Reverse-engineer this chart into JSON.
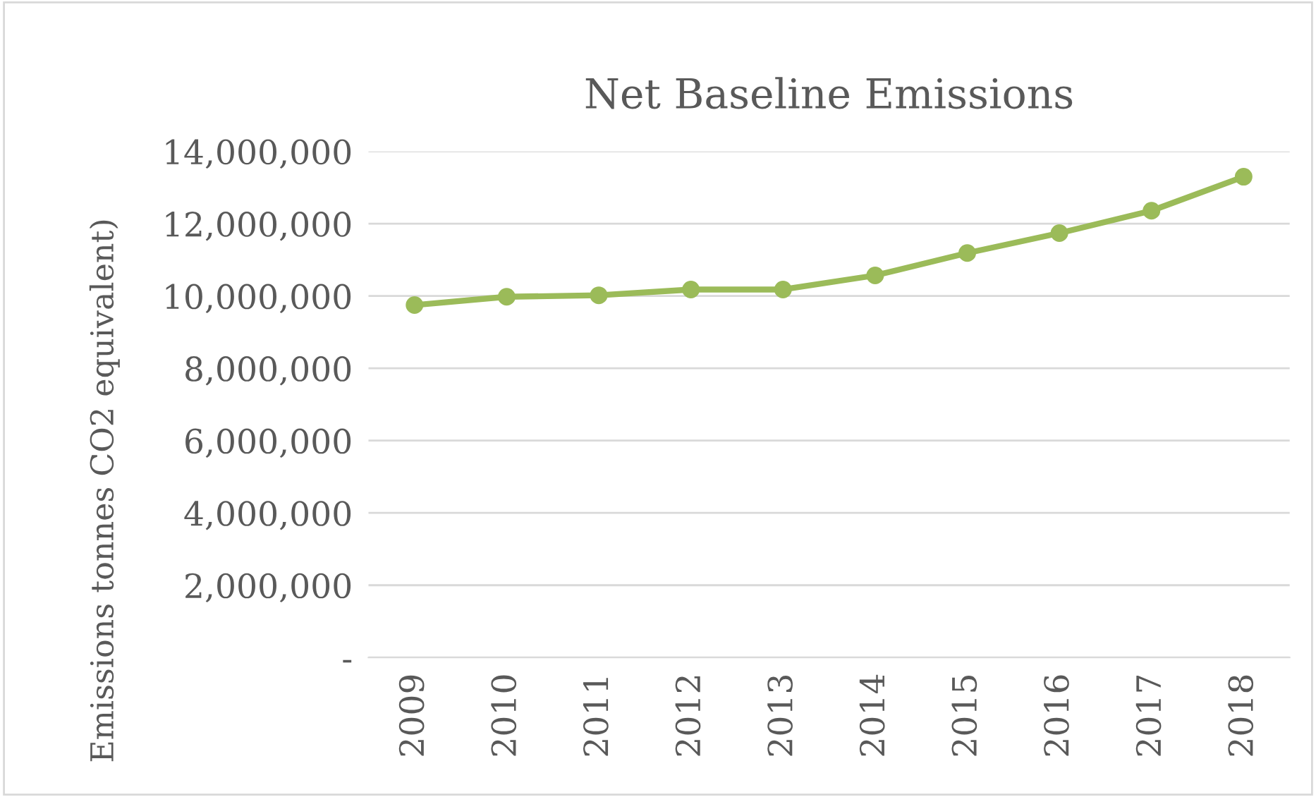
{
  "chart_data": {
    "type": "line",
    "title": "Net Baseline Emissions",
    "ylabel": "Emissions tonnes CO2 equivalent)",
    "categories": [
      "2009",
      "2010",
      "2011",
      "2012",
      "2013",
      "2014",
      "2015",
      "2016",
      "2017",
      "2018"
    ],
    "series": [
      {
        "color": "#9bbb59",
        "values": [
          9750000,
          9980000,
          10020000,
          10180000,
          10180000,
          10570000,
          11190000,
          11740000,
          12360000,
          13300000
        ]
      }
    ],
    "ylim": [
      0,
      14000000
    ],
    "yticks": [
      {
        "value": 0,
        "label": "-"
      },
      {
        "value": 2000000,
        "label": "2,000,000"
      },
      {
        "value": 4000000,
        "label": "4,000,000"
      },
      {
        "value": 6000000,
        "label": "6,000,000"
      },
      {
        "value": 8000000,
        "label": "8,000,000"
      },
      {
        "value": 10000000,
        "label": "10,000,000"
      },
      {
        "value": 12000000,
        "label": "12,000,000"
      },
      {
        "value": 14000000,
        "label": "14,000,000"
      }
    ],
    "grid": "y",
    "marker": "circle",
    "line_style": "solid",
    "legend": false
  }
}
